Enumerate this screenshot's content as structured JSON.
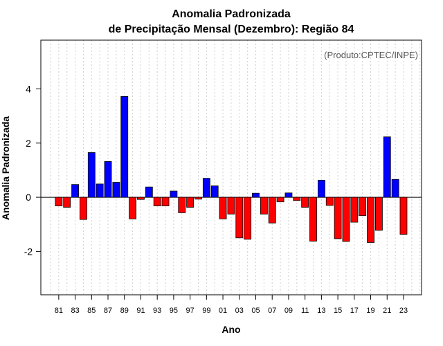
{
  "chart_data": {
    "type": "bar",
    "title_line1": "Anomalia Padronizada",
    "title_line2": "de Precipitação Mensal (Dezembro): Região 84",
    "xlabel": "Ano",
    "ylabel": "Anomalia Padronizada",
    "note": "(Produto:CPTEC/INPE)",
    "ylim": [
      -3.6,
      5.8
    ],
    "yticks": [
      -2,
      0,
      2,
      4
    ],
    "ytick_labels": [
      "-2",
      "0",
      "2",
      "4"
    ],
    "positive_color": "#0000ff",
    "negative_color": "#ff0000",
    "grid": "vertical dotted",
    "categories": [
      "81",
      "82",
      "83",
      "84",
      "85",
      "86",
      "87",
      "88",
      "89",
      "90",
      "91",
      "92",
      "93",
      "94",
      "95",
      "96",
      "97",
      "98",
      "99",
      "00",
      "01",
      "02",
      "03",
      "04",
      "05",
      "06",
      "07",
      "08",
      "09",
      "10",
      "11",
      "12",
      "13",
      "14",
      "15",
      "16",
      "17",
      "18",
      "19",
      "20",
      "21",
      "22",
      "23"
    ],
    "xtick_labels": [
      "81",
      "83",
      "85",
      "87",
      "89",
      "91",
      "93",
      "95",
      "97",
      "99",
      "01",
      "03",
      "05",
      "07",
      "09",
      "11",
      "13",
      "15",
      "17",
      "19",
      "21",
      "23"
    ],
    "values": [
      -0.32,
      -0.37,
      0.47,
      -0.82,
      1.65,
      0.49,
      1.32,
      0.55,
      3.72,
      -0.8,
      -0.08,
      0.38,
      -0.32,
      -0.32,
      0.23,
      -0.57,
      -0.37,
      -0.07,
      0.7,
      0.42,
      -0.8,
      -0.62,
      -1.5,
      -1.55,
      0.15,
      -0.62,
      -0.95,
      -0.17,
      0.16,
      -0.12,
      -0.37,
      -1.62,
      0.63,
      -0.3,
      -1.53,
      -1.63,
      -0.92,
      -0.68,
      -1.67,
      -1.22,
      2.23,
      0.66,
      -1.37
    ]
  }
}
